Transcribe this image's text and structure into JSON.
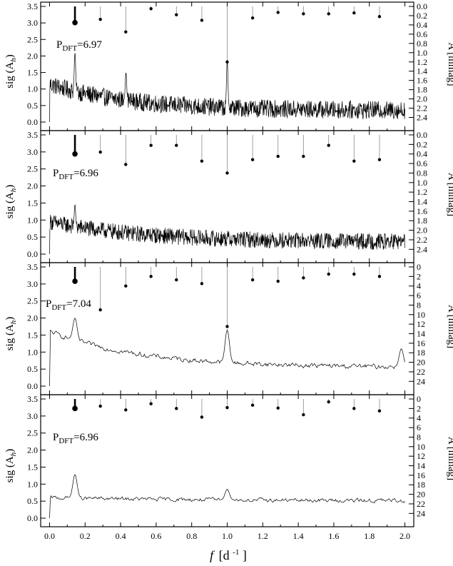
{
  "figure": {
    "xlabel_main": "f",
    "xlabel_unit": "[d",
    "xlabel_exp": "-1",
    "xlabel_end": "]"
  },
  "chart_data": [
    {
      "type": "line",
      "panel": 1,
      "ylabel_left": "sig (A",
      "ylabel_left_sub": "h",
      "ylabel_right": "A [mmag]",
      "ylim_left": [
        0,
        3.5
      ],
      "yticks_left": [
        0.0,
        0.5,
        1.0,
        1.5,
        2.0,
        2.5,
        3.0,
        3.5
      ],
      "yticks_left_labels": [
        "0.0",
        "0.5",
        "1.0",
        "1.5",
        "2.0",
        "2.5",
        "3.0",
        "3.5"
      ],
      "ylim_right": [
        0,
        2.5
      ],
      "yticks_right": [
        0.0,
        0.2,
        0.4,
        0.6,
        0.8,
        1.0,
        1.2,
        1.4,
        1.6,
        1.8,
        2.0,
        2.2,
        2.4
      ],
      "yticks_right_labels": [
        "0.0",
        "0.2",
        "0.4",
        "0.6",
        "0.8",
        "1.0",
        "1.2",
        "1.4",
        "1.6",
        "1.8",
        "2.0",
        "2.2",
        "2.4"
      ],
      "pdft_label": "P",
      "pdft_sub": "DFT",
      "pdft_value": "=6.97",
      "series_profile": {
        "start": 1.15,
        "end": 0.35,
        "decay": 0.45,
        "noise": 0.17
      },
      "spikes": [
        [
          0.143,
          2.1
        ],
        [
          0.43,
          1.5
        ],
        [
          1.0,
          1.85
        ]
      ],
      "stems": [
        {
          "f": 0.143,
          "A": 0.35,
          "main": true
        },
        {
          "f": 0.286,
          "A": 0.28
        },
        {
          "f": 0.429,
          "A": 0.55
        },
        {
          "f": 0.571,
          "A": 0.05
        },
        {
          "f": 0.714,
          "A": 0.18
        },
        {
          "f": 0.857,
          "A": 0.3
        },
        {
          "f": 1.0,
          "A": 1.2
        },
        {
          "f": 1.143,
          "A": 0.25
        },
        {
          "f": 1.286,
          "A": 0.13
        },
        {
          "f": 1.429,
          "A": 0.16
        },
        {
          "f": 1.571,
          "A": 0.16
        },
        {
          "f": 1.714,
          "A": 0.14
        },
        {
          "f": 1.857,
          "A": 0.22
        }
      ]
    },
    {
      "type": "line",
      "panel": 2,
      "ylabel_left": "sig (A",
      "ylabel_left_sub": "h",
      "ylabel_right": "A [mmag]",
      "ylim_left": [
        0,
        3.5
      ],
      "yticks_left": [
        0.0,
        0.5,
        1.0,
        1.5,
        2.0,
        2.5,
        3.0,
        3.5
      ],
      "yticks_left_labels": [
        "0.0",
        "0.5",
        "1.0",
        "1.5",
        "2.0",
        "2.5",
        "3.0",
        "3.5"
      ],
      "ylim_right": [
        0,
        2.5
      ],
      "yticks_right": [
        0.0,
        0.2,
        0.4,
        0.6,
        0.8,
        1.0,
        1.2,
        1.4,
        1.6,
        1.8,
        2.0,
        2.2,
        2.4
      ],
      "yticks_right_labels": [
        "0.0",
        "0.2",
        "0.4",
        "0.6",
        "0.8",
        "1.0",
        "1.2",
        "1.4",
        "1.6",
        "1.8",
        "2.0",
        "2.2",
        "2.4"
      ],
      "pdft_label": "P",
      "pdft_sub": "DFT",
      "pdft_value": "=6.96",
      "series_profile": {
        "start": 0.95,
        "end": 0.35,
        "decay": 0.55,
        "noise": 0.15
      },
      "spikes": [
        [
          0.143,
          1.45
        ]
      ],
      "stems": [
        {
          "f": 0.143,
          "A": 0.4,
          "main": true
        },
        {
          "f": 0.286,
          "A": 0.36
        },
        {
          "f": 0.429,
          "A": 0.62
        },
        {
          "f": 0.571,
          "A": 0.22
        },
        {
          "f": 0.714,
          "A": 0.22
        },
        {
          "f": 0.857,
          "A": 0.55
        },
        {
          "f": 1.0,
          "A": 0.8
        },
        {
          "f": 1.143,
          "A": 0.52
        },
        {
          "f": 1.286,
          "A": 0.45
        },
        {
          "f": 1.429,
          "A": 0.45
        },
        {
          "f": 1.571,
          "A": 0.22
        },
        {
          "f": 1.714,
          "A": 0.55
        },
        {
          "f": 1.857,
          "A": 0.52
        }
      ]
    },
    {
      "type": "line",
      "panel": 3,
      "ylabel_left": "sig (A",
      "ylabel_left_sub": "h",
      "ylabel_right": "A [mmag]",
      "ylim_left": [
        0,
        3.5
      ],
      "yticks_left": [
        0.0,
        0.5,
        1.0,
        1.5,
        2.0,
        2.5,
        3.0,
        3.5
      ],
      "yticks_left_labels": [
        "0.0",
        "0.5",
        "1.0",
        "1.5",
        "2.0",
        "2.5",
        "3.0",
        "3.5"
      ],
      "ylim_right": [
        0,
        25
      ],
      "yticks_right": [
        0,
        2,
        4,
        6,
        8,
        10,
        12,
        14,
        16,
        18,
        20,
        22,
        24
      ],
      "yticks_right_labels": [
        "0",
        "2",
        "4",
        "6",
        "8",
        "10",
        "12",
        "14",
        "16",
        "18",
        "20",
        "22",
        "24"
      ],
      "pdft_label": "P",
      "pdft_sub": "DFT",
      "pdft_value": "=7.04",
      "series_profile": {
        "start": 1.6,
        "end": 0.55,
        "decay": 0.5,
        "noise": 0.12,
        "smooth": true
      },
      "spikes": [
        [
          0.143,
          2.0
        ],
        [
          1.0,
          1.65
        ],
        [
          1.98,
          1.1
        ]
      ],
      "stems": [
        {
          "f": 0.143,
          "A": 3.0,
          "main": true
        },
        {
          "f": 0.286,
          "A": 9.0
        },
        {
          "f": 0.429,
          "A": 4.0
        },
        {
          "f": 0.571,
          "A": 2.0
        },
        {
          "f": 0.714,
          "A": 2.7
        },
        {
          "f": 0.857,
          "A": 3.5
        },
        {
          "f": 1.0,
          "A": 12.5
        },
        {
          "f": 1.143,
          "A": 2.7
        },
        {
          "f": 1.286,
          "A": 3.0
        },
        {
          "f": 1.429,
          "A": 2.3
        },
        {
          "f": 1.571,
          "A": 1.5
        },
        {
          "f": 1.714,
          "A": 1.5
        },
        {
          "f": 1.857,
          "A": 2.0
        }
      ]
    },
    {
      "type": "line",
      "panel": 4,
      "ylabel_left": "sig (A",
      "ylabel_left_sub": "h",
      "ylabel_right": "A [mmag]",
      "ylim_left": [
        0,
        3.5
      ],
      "yticks_left": [
        0.0,
        0.5,
        1.0,
        1.5,
        2.0,
        2.5,
        3.0,
        3.5
      ],
      "yticks_left_labels": [
        "0.0",
        "0.5",
        "1.0",
        "1.5",
        "2.0",
        "2.5",
        "3.0",
        "3.5"
      ],
      "ylim_right": [
        0,
        25
      ],
      "yticks_right": [
        0,
        2,
        4,
        6,
        8,
        10,
        12,
        14,
        16,
        18,
        20,
        22,
        24
      ],
      "yticks_right_labels": [
        "0",
        "2",
        "4",
        "6",
        "8",
        "10",
        "12",
        "14",
        "16",
        "18",
        "20",
        "22",
        "24"
      ],
      "pdft_label": "P",
      "pdft_sub": "DFT",
      "pdft_value": "=6.96",
      "series_profile": {
        "start": 0.6,
        "end": 0.5,
        "decay": 1.0,
        "noise": 0.1,
        "smooth": true
      },
      "spikes": [
        [
          0.143,
          1.28
        ],
        [
          1.0,
          0.85
        ]
      ],
      "stems": [
        {
          "f": 0.143,
          "A": 2.0,
          "main": true
        },
        {
          "f": 0.286,
          "A": 1.5
        },
        {
          "f": 0.429,
          "A": 2.3
        },
        {
          "f": 0.571,
          "A": 1.0
        },
        {
          "f": 0.714,
          "A": 2.0
        },
        {
          "f": 0.857,
          "A": 3.8
        },
        {
          "f": 1.0,
          "A": 1.8
        },
        {
          "f": 1.143,
          "A": 1.3
        },
        {
          "f": 1.286,
          "A": 1.9
        },
        {
          "f": 1.429,
          "A": 3.3
        },
        {
          "f": 1.571,
          "A": 0.6
        },
        {
          "f": 1.714,
          "A": 2.0
        },
        {
          "f": 1.857,
          "A": 2.5
        }
      ]
    }
  ],
  "x_axis": {
    "xlim": [
      -0.05,
      2.05
    ],
    "xticks": [
      0.0,
      0.2,
      0.4,
      0.6,
      0.8,
      1.0,
      1.2,
      1.4,
      1.6,
      1.8,
      2.0
    ],
    "xtick_labels": [
      "0.0",
      "0.2",
      "0.4",
      "0.6",
      "0.8",
      "1.0",
      "1.2",
      "1.4",
      "1.6",
      "1.8",
      "2.0"
    ]
  }
}
